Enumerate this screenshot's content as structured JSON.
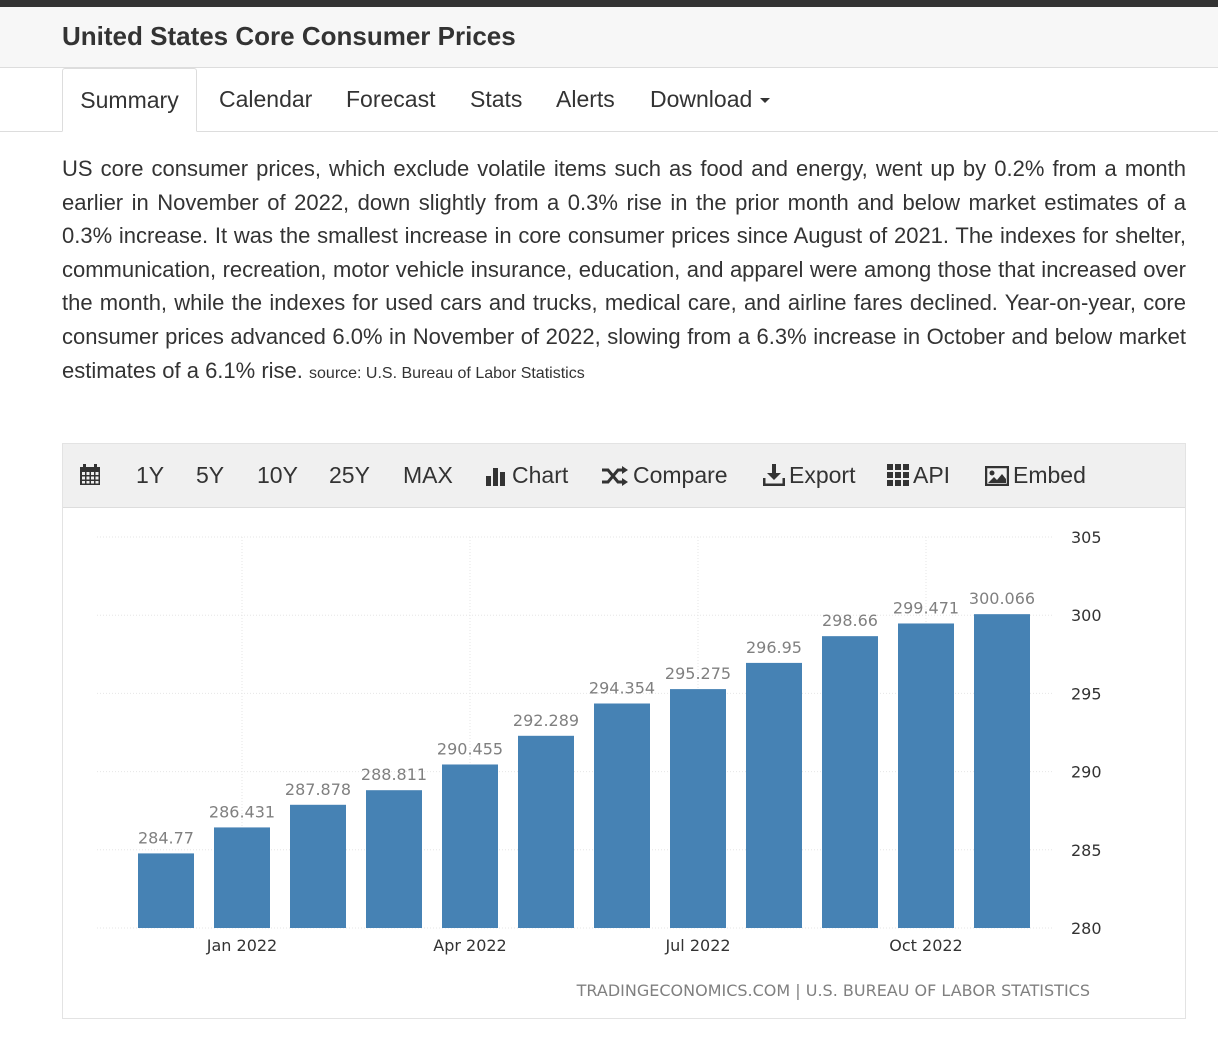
{
  "header": {
    "title": "United States Core Consumer Prices"
  },
  "tabs": [
    {
      "label": "Summary"
    },
    {
      "label": "Calendar"
    },
    {
      "label": "Forecast"
    },
    {
      "label": "Stats"
    },
    {
      "label": "Alerts"
    },
    {
      "label": "Download"
    }
  ],
  "summary": {
    "text": "US core consumer prices, which exclude volatile items such as food and energy, went up by 0.2% from a month earlier in November of 2022, down slightly from a 0.3% rise in the prior month and below market estimates of a 0.3% increase. It was the smallest increase in core consumer prices since August of 2021. The indexes for shelter, communication, recreation, motor vehicle insurance, education, and apparel were among those that increased over the month, while the indexes for used cars and trucks, medical care, and airline fares declined. Year-on-year, core consumer prices advanced 6.0% in November of 2022, slowing from a 6.3% increase in October and below market estimates of a 6.1% rise.",
    "source": "source: U.S. Bureau of Labor Statistics"
  },
  "toolbar": {
    "ranges": [
      "1Y",
      "5Y",
      "10Y",
      "25Y",
      "MAX"
    ],
    "chart_label": "Chart",
    "compare_label": "Compare",
    "export_label": "Export",
    "api_label": "API",
    "embed_label": "Embed"
  },
  "colors": {
    "bar": "#4682b4",
    "accent_bar": "#333333"
  },
  "chart_data": {
    "type": "bar",
    "categories": [
      "Dec 2021",
      "Jan 2022",
      "Feb 2022",
      "Mar 2022",
      "Apr 2022",
      "May 2022",
      "Jun 2022",
      "Jul 2022",
      "Aug 2022",
      "Sep 2022",
      "Oct 2022",
      "Nov 2022"
    ],
    "values": [
      284.77,
      286.431,
      287.878,
      288.811,
      290.455,
      292.289,
      294.354,
      295.275,
      296.95,
      298.66,
      299.471,
      300.066
    ],
    "value_labels": [
      "284.77",
      "286.431",
      "287.878",
      "288.811",
      "290.455",
      "292.289",
      "294.354",
      "295.275",
      "296.95",
      "298.66",
      "299.471",
      "300.066"
    ],
    "x_tick_labels": [
      {
        "category": "Jan 2022",
        "label": "Jan 2022"
      },
      {
        "category": "Apr 2022",
        "label": "Apr 2022"
      },
      {
        "category": "Jul 2022",
        "label": "Jul 2022"
      },
      {
        "category": "Oct 2022",
        "label": "Oct 2022"
      }
    ],
    "y_ticks": [
      280,
      285,
      290,
      295,
      300,
      305
    ],
    "ylim": [
      280,
      305
    ],
    "y_axis_side": "right",
    "grid": true,
    "credit": "TRADINGECONOMICS.COM | U.S. BUREAU OF LABOR STATISTICS"
  }
}
